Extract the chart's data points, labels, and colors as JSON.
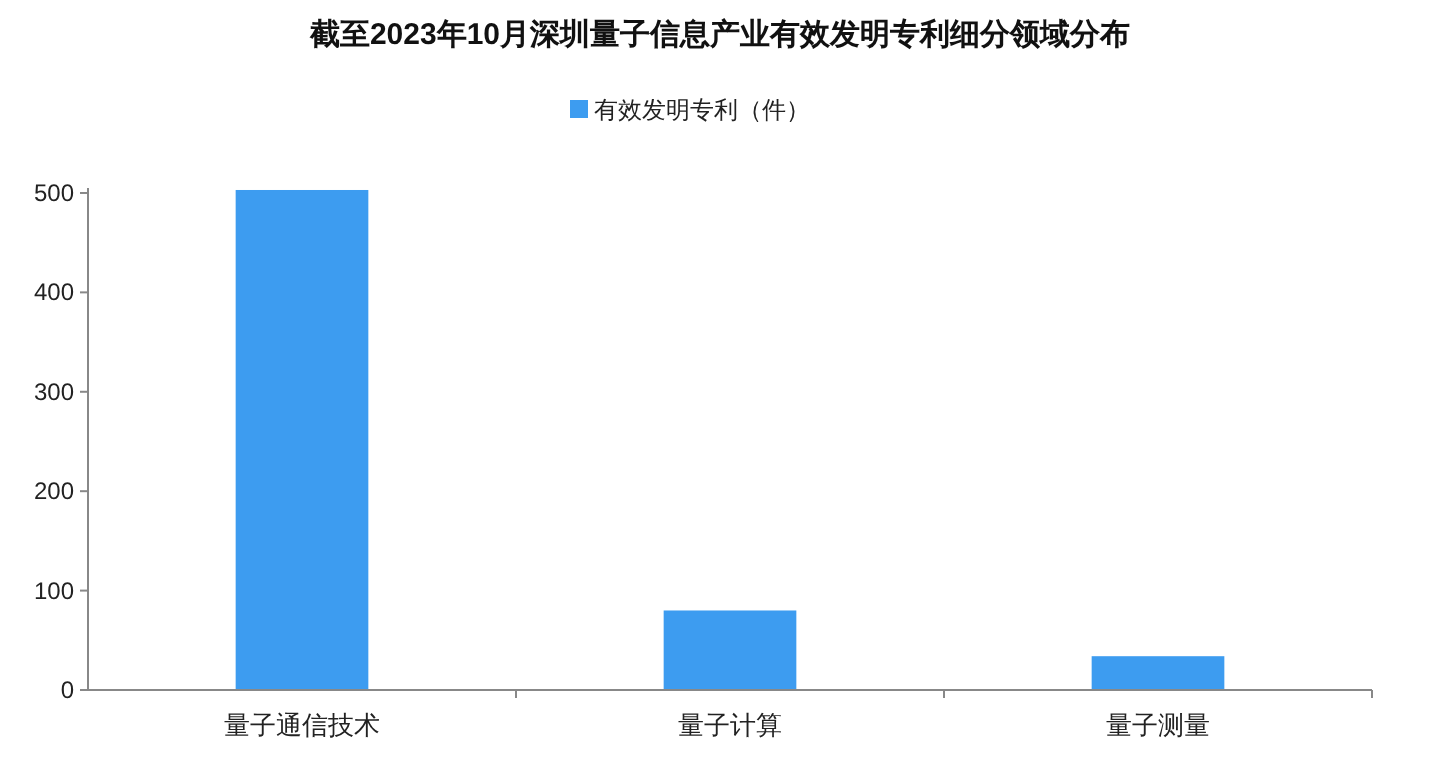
{
  "chart_data": {
    "type": "bar",
    "title": "截至2023年10月深圳量子信息产业有效发明专利细分领域分布",
    "categories": [
      "量子通信技术",
      "量子计算",
      "量子测量"
    ],
    "series": [
      {
        "name": "有效发明专利（件）",
        "color": "#3d9cf0",
        "values": [
          503,
          80,
          34
        ]
      }
    ],
    "ylim": [
      0,
      505
    ],
    "yticks": [
      0,
      100,
      200,
      300,
      400,
      500
    ],
    "grid": false,
    "legend": "top"
  }
}
